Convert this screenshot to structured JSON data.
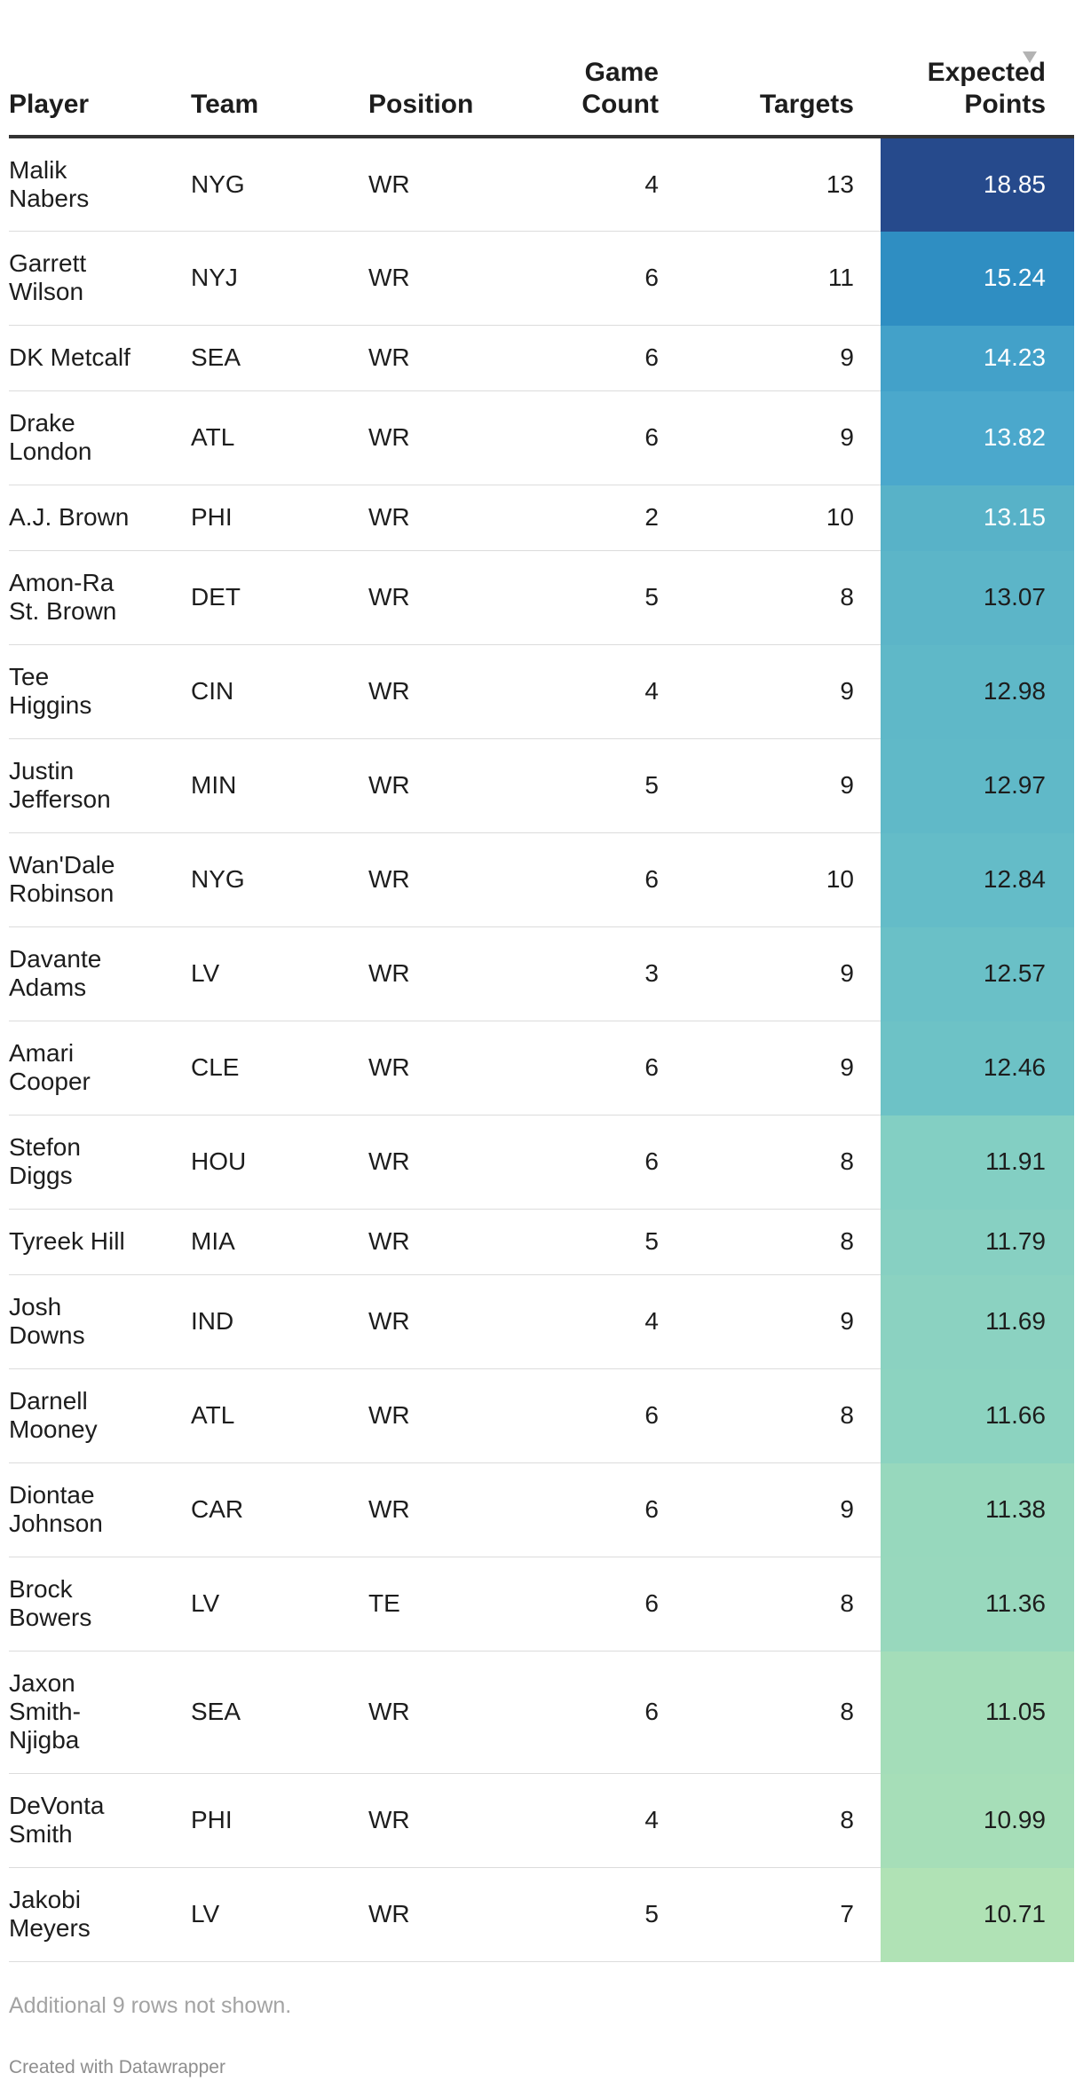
{
  "table": {
    "headers": {
      "player": "Player",
      "team": "Team",
      "position": "Position",
      "game_count_line1": "Game",
      "game_count_line2": "Count",
      "targets": "Targets",
      "expected_points_line1": "Expected",
      "expected_points_line2": "Points"
    },
    "sorted_column": "Expected Points",
    "sort_direction": "descending",
    "rows": [
      {
        "player": [
          "Malik",
          "Nabers"
        ],
        "team": "NYG",
        "position": "WR",
        "game_count": "4",
        "targets": "13",
        "expected_points": "18.85",
        "cell_color": "#264a8c",
        "text_color": "#ffffff"
      },
      {
        "player": [
          "Garrett",
          "Wilson"
        ],
        "team": "NYJ",
        "position": "WR",
        "game_count": "6",
        "targets": "11",
        "expected_points": "15.24",
        "cell_color": "#2f8ec2",
        "text_color": "#ffffff"
      },
      {
        "player": [
          "DK Metcalf"
        ],
        "team": "SEA",
        "position": "WR",
        "game_count": "6",
        "targets": "9",
        "expected_points": "14.23",
        "cell_color": "#43a1c9",
        "text_color": "#ffffff"
      },
      {
        "player": [
          "Drake",
          "London"
        ],
        "team": "ATL",
        "position": "WR",
        "game_count": "6",
        "targets": "9",
        "expected_points": "13.82",
        "cell_color": "#4ba8cc",
        "text_color": "#ffffff"
      },
      {
        "player": [
          "A.J. Brown"
        ],
        "team": "PHI",
        "position": "WR",
        "game_count": "2",
        "targets": "10",
        "expected_points": "13.15",
        "cell_color": "#58b2c8",
        "text_color": "#ffffff"
      },
      {
        "player": [
          "Amon-Ra",
          "St. Brown"
        ],
        "team": "DET",
        "position": "WR",
        "game_count": "5",
        "targets": "8",
        "expected_points": "13.07",
        "cell_color": "#5cb5c8",
        "text_color": "#1d1d1d"
      },
      {
        "player": [
          "Tee",
          "Higgins"
        ],
        "team": "CIN",
        "position": "WR",
        "game_count": "4",
        "targets": "9",
        "expected_points": "12.98",
        "cell_color": "#5fb8c8",
        "text_color": "#1d1d1d"
      },
      {
        "player": [
          "Justin",
          "Jefferson"
        ],
        "team": "MIN",
        "position": "WR",
        "game_count": "5",
        "targets": "9",
        "expected_points": "12.97",
        "cell_color": "#60b9c8",
        "text_color": "#1d1d1d"
      },
      {
        "player": [
          "Wan'Dale",
          "Robinson"
        ],
        "team": "NYG",
        "position": "WR",
        "game_count": "6",
        "targets": "10",
        "expected_points": "12.84",
        "cell_color": "#64bcc8",
        "text_color": "#1d1d1d"
      },
      {
        "player": [
          "Davante",
          "Adams"
        ],
        "team": "LV",
        "position": "WR",
        "game_count": "3",
        "targets": "9",
        "expected_points": "12.57",
        "cell_color": "#6ac0c7",
        "text_color": "#1d1d1d"
      },
      {
        "player": [
          "Amari",
          "Cooper"
        ],
        "team": "CLE",
        "position": "WR",
        "game_count": "6",
        "targets": "9",
        "expected_points": "12.46",
        "cell_color": "#6dc2c6",
        "text_color": "#1d1d1d"
      },
      {
        "player": [
          "Stefon",
          "Diggs"
        ],
        "team": "HOU",
        "position": "WR",
        "game_count": "6",
        "targets": "8",
        "expected_points": "11.91",
        "cell_color": "#83cfc3",
        "text_color": "#1d1d1d"
      },
      {
        "player": [
          "Tyreek Hill"
        ],
        "team": "MIA",
        "position": "WR",
        "game_count": "5",
        "targets": "8",
        "expected_points": "11.79",
        "cell_color": "#87d0c2",
        "text_color": "#1d1d1d"
      },
      {
        "player": [
          "Josh",
          "Downs"
        ],
        "team": "IND",
        "position": "WR",
        "game_count": "4",
        "targets": "9",
        "expected_points": "11.69",
        "cell_color": "#8bd2c1",
        "text_color": "#1d1d1d"
      },
      {
        "player": [
          "Darnell",
          "Mooney"
        ],
        "team": "ATL",
        "position": "WR",
        "game_count": "6",
        "targets": "8",
        "expected_points": "11.66",
        "cell_color": "#8cd3c0",
        "text_color": "#1d1d1d"
      },
      {
        "player": [
          "Diontae",
          "Johnson"
        ],
        "team": "CAR",
        "position": "WR",
        "game_count": "6",
        "targets": "9",
        "expected_points": "11.38",
        "cell_color": "#97d8bd",
        "text_color": "#1d1d1d"
      },
      {
        "player": [
          "Brock",
          "Bowers"
        ],
        "team": "LV",
        "position": "TE",
        "game_count": "6",
        "targets": "8",
        "expected_points": "11.36",
        "cell_color": "#98d8bd",
        "text_color": "#1d1d1d"
      },
      {
        "player": [
          "Jaxon",
          "Smith-",
          "Njigba"
        ],
        "team": "SEA",
        "position": "WR",
        "game_count": "6",
        "targets": "8",
        "expected_points": "11.05",
        "cell_color": "#a4ddb9",
        "text_color": "#1d1d1d"
      },
      {
        "player": [
          "DeVonta",
          "Smith"
        ],
        "team": "PHI",
        "position": "WR",
        "game_count": "4",
        "targets": "8",
        "expected_points": "10.99",
        "cell_color": "#a6deb8",
        "text_color": "#1d1d1d"
      },
      {
        "player": [
          "Jakobi",
          "Meyers"
        ],
        "team": "LV",
        "position": "WR",
        "game_count": "5",
        "targets": "7",
        "expected_points": "10.71",
        "cell_color": "#b0e2b5",
        "text_color": "#1d1d1d"
      }
    ]
  },
  "footer": {
    "note": "Additional 9 rows not shown.",
    "credit": "Created with Datawrapper"
  },
  "icons": {
    "sort": "sort-descending-icon"
  }
}
